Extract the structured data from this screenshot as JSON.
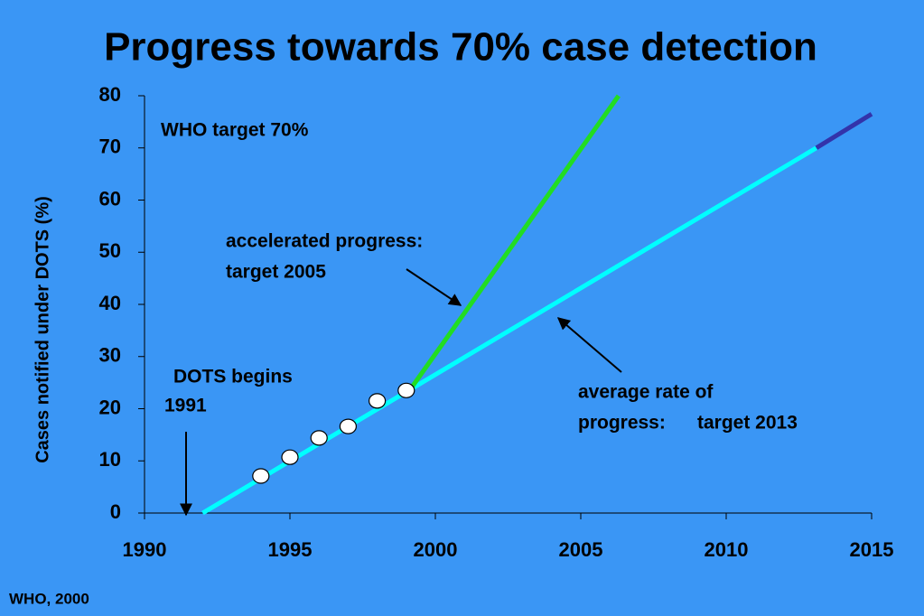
{
  "chart_data": {
    "type": "line",
    "title": "Progress towards 70% case detection",
    "y_label": "Cases notified under DOTS  (%)",
    "source": "WHO,  2000",
    "annotations": [
      "WHO target 70%",
      "accelerated progress:",
      "target 2005",
      "DOTS begins",
      "1991",
      "average rate of",
      "progress:",
      "target 2013"
    ],
    "xlim": [
      1990,
      2015
    ],
    "xticks": [
      1990,
      1995,
      2000,
      2005,
      2010,
      2015
    ],
    "ylim": [
      0,
      80
    ],
    "yticks": [
      0,
      10,
      20,
      30,
      40,
      50,
      60,
      70,
      80
    ],
    "grid": false,
    "series": [
      {
        "color": "#00ffff",
        "x": [
          1992,
          2013.1
        ],
        "values": [
          0,
          70
        ]
      },
      {
        "color": "#3333aa",
        "x": [
          2013.1,
          2015
        ],
        "values": [
          70,
          76.5
        ]
      },
      {
        "color": "#22dd22",
        "x": [
          1999.2,
          2006.3
        ],
        "values": [
          24.2,
          80
        ]
      },
      {
        "color": "#ffffff",
        "marker": true,
        "x": [
          1994,
          1995,
          1996,
          1997,
          1998,
          1999
        ],
        "values": [
          7.1,
          10.7,
          14.4,
          16.6,
          21.5,
          23.5
        ]
      }
    ]
  }
}
